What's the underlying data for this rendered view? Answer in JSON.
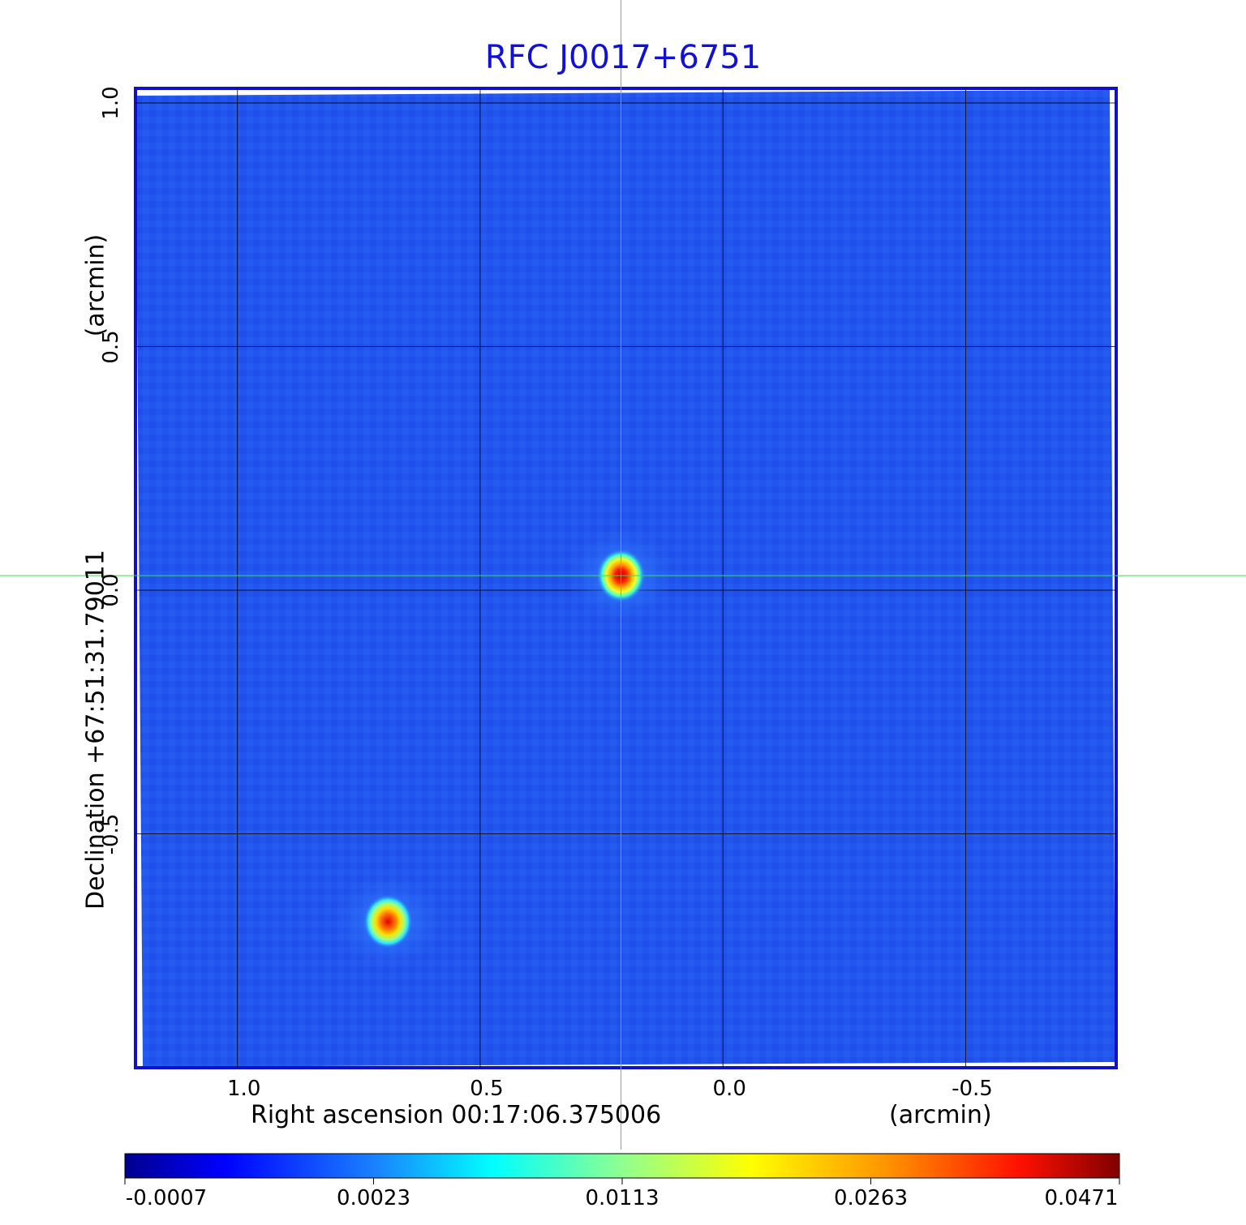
{
  "chart_data": {
    "type": "heatmap",
    "title": "RFC J0017+6751",
    "xlabel": "Right ascension  00:17:06.375006",
    "xunit": "(arcmin)",
    "ylabel": "Declination  +67:51:31.79011",
    "yunit": "(arcmin)",
    "xlim": [
      1.21,
      -0.81
    ],
    "ylim": [
      -0.98,
      1.03
    ],
    "x_ticks": [
      "1.0",
      "0.5",
      "0.0",
      "-0.5"
    ],
    "x_tick_values": [
      1.0,
      0.5,
      0.0,
      -0.5
    ],
    "y_ticks": [
      "1.0",
      "0.5",
      "0.0",
      "-0.5"
    ],
    "y_tick_values": [
      1.0,
      0.5,
      0.0,
      -0.5
    ],
    "grid": true,
    "crosshair": {
      "x": 0.21,
      "y": 0.03,
      "color": "#33dd55"
    },
    "sources": [
      {
        "x": 0.21,
        "y": 0.03,
        "peak": 0.0471
      },
      {
        "x": 0.69,
        "y": -0.68,
        "peak": 0.038
      }
    ],
    "colormap": "jet",
    "colorbar": {
      "ticks": [
        "-0.0007",
        "0.0023",
        "0.0113",
        "0.0263",
        "0.0471"
      ],
      "tick_values": [
        -0.0007,
        0.0023,
        0.0113,
        0.0263,
        0.0471
      ]
    },
    "background_color": "#2255ee",
    "frame_color": "#1010c8"
  }
}
